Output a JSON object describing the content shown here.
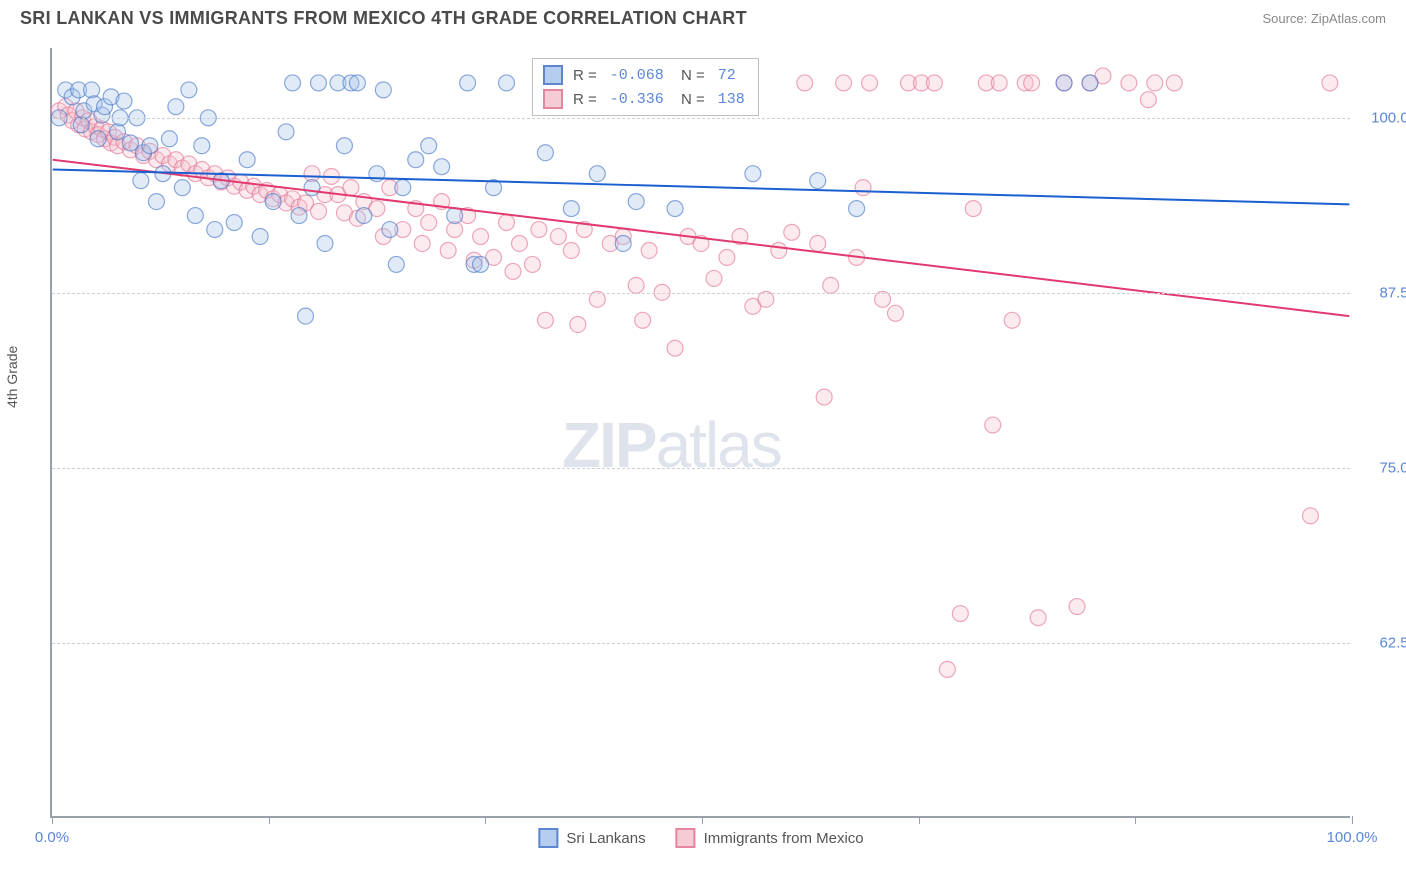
{
  "title": "SRI LANKAN VS IMMIGRANTS FROM MEXICO 4TH GRADE CORRELATION CHART",
  "source": "Source: ZipAtlas.com",
  "y_axis_label": "4th Grade",
  "watermark_bold": "ZIP",
  "watermark_light": "atlas",
  "chart": {
    "type": "scatter",
    "xlim": [
      0,
      100
    ],
    "ylim": [
      50,
      105
    ],
    "y_grid": [
      62.5,
      75.0,
      87.5,
      100.0
    ],
    "y_tick_labels": [
      "62.5%",
      "75.0%",
      "87.5%",
      "100.0%"
    ],
    "x_ticks": [
      0,
      16.67,
      33.33,
      50,
      66.67,
      83.33,
      100
    ],
    "x_tick_labels": {
      "0": "0.0%",
      "100": "100.0%"
    },
    "background_color": "#ffffff",
    "grid_color": "#d0d0d0",
    "marker_radius": 8,
    "marker_opacity": 0.35,
    "line_width": 2,
    "series": [
      {
        "name": "Sri Lankans",
        "color_fill": "#a9c5ec",
        "color_stroke": "#4172c5",
        "color_line": "#1b5fd0",
        "R": "-0.068",
        "N": "72",
        "trend": {
          "x1": 0,
          "y1": 96.3,
          "x2": 100,
          "y2": 93.8
        },
        "points": [
          [
            0.5,
            100
          ],
          [
            1,
            102
          ],
          [
            1.5,
            101.5
          ],
          [
            2,
            102
          ],
          [
            2.2,
            99.5
          ],
          [
            2.4,
            100.5
          ],
          [
            3,
            102
          ],
          [
            3.2,
            101
          ],
          [
            3.5,
            98.5
          ],
          [
            3.8,
            100.2
          ],
          [
            4,
            100.8
          ],
          [
            4.5,
            101.5
          ],
          [
            5,
            99
          ],
          [
            5.2,
            100
          ],
          [
            5.5,
            101.2
          ],
          [
            6,
            98.2
          ],
          [
            6.5,
            100
          ],
          [
            6.8,
            95.5
          ],
          [
            7,
            97.5
          ],
          [
            7.5,
            98
          ],
          [
            8,
            94
          ],
          [
            8.5,
            96
          ],
          [
            9,
            98.5
          ],
          [
            9.5,
            100.8
          ],
          [
            10,
            95
          ],
          [
            10.5,
            102
          ],
          [
            11,
            93
          ],
          [
            11.5,
            98
          ],
          [
            12,
            100
          ],
          [
            12.5,
            92
          ],
          [
            13,
            95.5
          ],
          [
            14,
            92.5
          ],
          [
            15,
            97
          ],
          [
            16,
            91.5
          ],
          [
            17,
            94
          ],
          [
            18,
            99
          ],
          [
            18.5,
            102.5
          ],
          [
            19,
            93
          ],
          [
            19.5,
            85.8
          ],
          [
            20,
            95
          ],
          [
            20.5,
            102.5
          ],
          [
            21,
            91
          ],
          [
            22,
            102.5
          ],
          [
            22.5,
            98
          ],
          [
            23,
            102.5
          ],
          [
            23.5,
            102.5
          ],
          [
            24,
            93
          ],
          [
            25,
            96
          ],
          [
            25.5,
            102
          ],
          [
            26,
            92
          ],
          [
            26.5,
            89.5
          ],
          [
            27,
            95
          ],
          [
            28,
            97
          ],
          [
            29,
            98
          ],
          [
            30,
            96.5
          ],
          [
            31,
            93
          ],
          [
            32,
            102.5
          ],
          [
            32.5,
            89.5
          ],
          [
            33,
            89.5
          ],
          [
            34,
            95
          ],
          [
            35,
            102.5
          ],
          [
            38,
            97.5
          ],
          [
            40,
            93.5
          ],
          [
            42,
            96
          ],
          [
            44,
            91
          ],
          [
            45,
            94
          ],
          [
            48,
            93.5
          ],
          [
            54,
            96
          ],
          [
            59,
            95.5
          ],
          [
            62,
            93.5
          ],
          [
            78,
            102.5
          ],
          [
            80,
            102.5
          ]
        ]
      },
      {
        "name": "Immigrants from Mexico",
        "color_fill": "#f4c2ce",
        "color_stroke": "#e3708f",
        "color_line": "#e23a6e",
        "R": "-0.336",
        "N": "138",
        "trend": {
          "x1": 0,
          "y1": 97.0,
          "x2": 100,
          "y2": 85.8
        },
        "points": [
          [
            0.5,
            100.5
          ],
          [
            1,
            100.8
          ],
          [
            1.2,
            100.2
          ],
          [
            1.5,
            99.8
          ],
          [
            1.8,
            100.5
          ],
          [
            2,
            99.5
          ],
          [
            2.3,
            100
          ],
          [
            2.5,
            99.2
          ],
          [
            2.8,
            99.8
          ],
          [
            3,
            99
          ],
          [
            3.3,
            99.4
          ],
          [
            3.5,
            98.8
          ],
          [
            3.8,
            99.2
          ],
          [
            4,
            98.5
          ],
          [
            4.3,
            99
          ],
          [
            4.5,
            98.2
          ],
          [
            4.8,
            98.6
          ],
          [
            5,
            98
          ],
          [
            5.5,
            98.3
          ],
          [
            6,
            97.7
          ],
          [
            6.5,
            98
          ],
          [
            7,
            97.3
          ],
          [
            7.5,
            97.6
          ],
          [
            8,
            97
          ],
          [
            8.5,
            97.3
          ],
          [
            9,
            96.7
          ],
          [
            9.5,
            97
          ],
          [
            10,
            96.4
          ],
          [
            10.5,
            96.7
          ],
          [
            11,
            96
          ],
          [
            11.5,
            96.3
          ],
          [
            12,
            95.7
          ],
          [
            12.5,
            96
          ],
          [
            13,
            95.4
          ],
          [
            13.5,
            95.7
          ],
          [
            14,
            95.1
          ],
          [
            14.5,
            95.4
          ],
          [
            15,
            94.8
          ],
          [
            15.5,
            95.1
          ],
          [
            16,
            94.5
          ],
          [
            16.5,
            94.8
          ],
          [
            17,
            94.2
          ],
          [
            17.5,
            94.5
          ],
          [
            18,
            93.9
          ],
          [
            18.5,
            94.2
          ],
          [
            19,
            93.6
          ],
          [
            19.5,
            93.9
          ],
          [
            20,
            96
          ],
          [
            20.5,
            93.3
          ],
          [
            21,
            94.5
          ],
          [
            21.5,
            95.8
          ],
          [
            22,
            94.5
          ],
          [
            22.5,
            93.2
          ],
          [
            23,
            95
          ],
          [
            23.5,
            92.8
          ],
          [
            24,
            94
          ],
          [
            25,
            93.5
          ],
          [
            25.5,
            91.5
          ],
          [
            26,
            95
          ],
          [
            27,
            92
          ],
          [
            28,
            93.5
          ],
          [
            28.5,
            91
          ],
          [
            29,
            92.5
          ],
          [
            30,
            94
          ],
          [
            30.5,
            90.5
          ],
          [
            31,
            92
          ],
          [
            32,
            93
          ],
          [
            32.5,
            89.8
          ],
          [
            33,
            91.5
          ],
          [
            34,
            90
          ],
          [
            35,
            92.5
          ],
          [
            35.5,
            89
          ],
          [
            36,
            91
          ],
          [
            37,
            89.5
          ],
          [
            37.5,
            92
          ],
          [
            38,
            85.5
          ],
          [
            39,
            91.5
          ],
          [
            40,
            90.5
          ],
          [
            40.5,
            85.2
          ],
          [
            41,
            92
          ],
          [
            42,
            87
          ],
          [
            43,
            91
          ],
          [
            44,
            91.5
          ],
          [
            45,
            88
          ],
          [
            45.5,
            85.5
          ],
          [
            46,
            90.5
          ],
          [
            47,
            87.5
          ],
          [
            48,
            83.5
          ],
          [
            49,
            91.5
          ],
          [
            50,
            91
          ],
          [
            51,
            88.5
          ],
          [
            52,
            90
          ],
          [
            53,
            91.5
          ],
          [
            54,
            86.5
          ],
          [
            55,
            87
          ],
          [
            56,
            90.5
          ],
          [
            57,
            91.8
          ],
          [
            58,
            102.5
          ],
          [
            59,
            91
          ],
          [
            59.5,
            80
          ],
          [
            60,
            88
          ],
          [
            61,
            102.5
          ],
          [
            62,
            90
          ],
          [
            62.5,
            95
          ],
          [
            63,
            102.5
          ],
          [
            64,
            87
          ],
          [
            65,
            86
          ],
          [
            66,
            102.5
          ],
          [
            67,
            102.5
          ],
          [
            68,
            102.5
          ],
          [
            69,
            60.5
          ],
          [
            70,
            64.5
          ],
          [
            71,
            93.5
          ],
          [
            72,
            102.5
          ],
          [
            72.5,
            78
          ],
          [
            73,
            102.5
          ],
          [
            74,
            85.5
          ],
          [
            75,
            102.5
          ],
          [
            75.5,
            102.5
          ],
          [
            76,
            64.2
          ],
          [
            78,
            102.5
          ],
          [
            79,
            65
          ],
          [
            80,
            102.5
          ],
          [
            81,
            103
          ],
          [
            83,
            102.5
          ],
          [
            84.5,
            101.3
          ],
          [
            85,
            102.5
          ],
          [
            86.5,
            102.5
          ],
          [
            97,
            71.5
          ],
          [
            98.5,
            102.5
          ]
        ]
      }
    ]
  },
  "legend": {
    "item1": "Sri Lankans",
    "item2": "Immigrants from Mexico"
  }
}
